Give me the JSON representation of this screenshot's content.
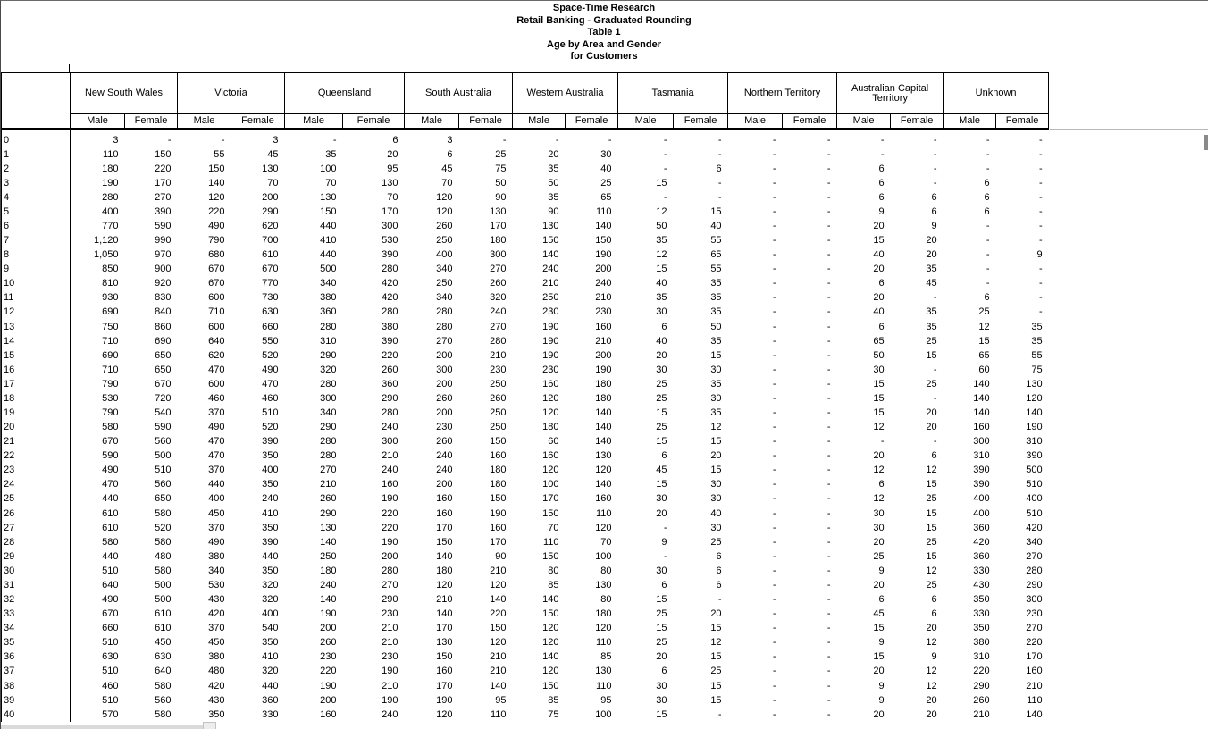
{
  "header": {
    "lines": [
      "Space-Time Research",
      "Retail Banking - Graduated Rounding",
      "Table 1",
      "Age by Area and Gender",
      "for Customers"
    ]
  },
  "table": {
    "groups": [
      "New South Wales",
      "Victoria",
      "Queensland",
      "South Australia",
      "Western Australia",
      "Tasmania",
      "Northern Territory",
      "Australian Capital Territory",
      "Unknown"
    ],
    "sub_headers": [
      "Male",
      "Female"
    ],
    "rows": [
      [
        "0",
        "3",
        "-",
        "-",
        "3",
        "-",
        "6",
        "3",
        "-",
        "-",
        "-",
        "-",
        "-",
        "-",
        "-",
        "-",
        "-",
        "-",
        "-"
      ],
      [
        "1",
        "110",
        "150",
        "55",
        "45",
        "35",
        "20",
        "6",
        "25",
        "20",
        "30",
        "-",
        "-",
        "-",
        "-",
        "-",
        "-",
        "-",
        "-"
      ],
      [
        "2",
        "180",
        "220",
        "150",
        "130",
        "100",
        "95",
        "45",
        "75",
        "35",
        "40",
        "-",
        "6",
        "-",
        "-",
        "6",
        "-",
        "-",
        "-"
      ],
      [
        "3",
        "190",
        "170",
        "140",
        "70",
        "70",
        "130",
        "70",
        "50",
        "50",
        "25",
        "15",
        "-",
        "-",
        "-",
        "6",
        "-",
        "6",
        "-"
      ],
      [
        "4",
        "280",
        "270",
        "120",
        "200",
        "130",
        "70",
        "120",
        "90",
        "35",
        "65",
        "-",
        "-",
        "-",
        "-",
        "6",
        "6",
        "6",
        "-"
      ],
      [
        "5",
        "400",
        "390",
        "220",
        "290",
        "150",
        "170",
        "120",
        "130",
        "90",
        "110",
        "12",
        "15",
        "-",
        "-",
        "9",
        "6",
        "6",
        "-"
      ],
      [
        "6",
        "770",
        "590",
        "490",
        "620",
        "440",
        "300",
        "260",
        "170",
        "130",
        "140",
        "50",
        "40",
        "-",
        "-",
        "20",
        "9",
        "-",
        "-"
      ],
      [
        "7",
        "1,120",
        "990",
        "790",
        "700",
        "410",
        "530",
        "250",
        "180",
        "150",
        "150",
        "35",
        "55",
        "-",
        "-",
        "15",
        "20",
        "-",
        "-"
      ],
      [
        "8",
        "1,050",
        "970",
        "680",
        "610",
        "440",
        "390",
        "400",
        "300",
        "140",
        "190",
        "12",
        "65",
        "-",
        "-",
        "40",
        "20",
        "-",
        "9"
      ],
      [
        "9",
        "850",
        "900",
        "670",
        "670",
        "500",
        "280",
        "340",
        "270",
        "240",
        "200",
        "15",
        "55",
        "-",
        "-",
        "20",
        "35",
        "-",
        "-"
      ],
      [
        "10",
        "810",
        "920",
        "670",
        "770",
        "340",
        "420",
        "250",
        "260",
        "210",
        "240",
        "40",
        "35",
        "-",
        "-",
        "6",
        "45",
        "-",
        "-"
      ],
      [
        "11",
        "930",
        "830",
        "600",
        "730",
        "380",
        "420",
        "340",
        "320",
        "250",
        "210",
        "35",
        "35",
        "-",
        "-",
        "20",
        "-",
        "6",
        "-"
      ],
      [
        "12",
        "690",
        "840",
        "710",
        "630",
        "360",
        "280",
        "280",
        "240",
        "230",
        "230",
        "30",
        "35",
        "-",
        "-",
        "40",
        "35",
        "25",
        "-"
      ],
      [
        "13",
        "750",
        "860",
        "600",
        "660",
        "280",
        "380",
        "280",
        "270",
        "190",
        "160",
        "6",
        "50",
        "-",
        "-",
        "6",
        "35",
        "12",
        "35"
      ],
      [
        "14",
        "710",
        "690",
        "640",
        "550",
        "310",
        "390",
        "270",
        "280",
        "190",
        "210",
        "40",
        "35",
        "-",
        "-",
        "65",
        "25",
        "15",
        "35"
      ],
      [
        "15",
        "690",
        "650",
        "620",
        "520",
        "290",
        "220",
        "200",
        "210",
        "190",
        "200",
        "20",
        "15",
        "-",
        "-",
        "50",
        "15",
        "65",
        "55"
      ],
      [
        "16",
        "710",
        "650",
        "470",
        "490",
        "320",
        "260",
        "300",
        "230",
        "230",
        "190",
        "30",
        "30",
        "-",
        "-",
        "30",
        "-",
        "60",
        "75"
      ],
      [
        "17",
        "790",
        "670",
        "600",
        "470",
        "280",
        "360",
        "200",
        "250",
        "160",
        "180",
        "25",
        "35",
        "-",
        "-",
        "15",
        "25",
        "140",
        "130"
      ],
      [
        "18",
        "530",
        "720",
        "460",
        "460",
        "300",
        "290",
        "260",
        "260",
        "120",
        "180",
        "25",
        "30",
        "-",
        "-",
        "15",
        "-",
        "140",
        "120"
      ],
      [
        "19",
        "790",
        "540",
        "370",
        "510",
        "340",
        "280",
        "200",
        "250",
        "120",
        "140",
        "15",
        "35",
        "-",
        "-",
        "15",
        "20",
        "140",
        "140"
      ],
      [
        "20",
        "580",
        "590",
        "490",
        "520",
        "290",
        "240",
        "230",
        "250",
        "180",
        "140",
        "25",
        "12",
        "-",
        "-",
        "12",
        "20",
        "160",
        "190"
      ],
      [
        "21",
        "670",
        "560",
        "470",
        "390",
        "280",
        "300",
        "260",
        "150",
        "60",
        "140",
        "15",
        "15",
        "-",
        "-",
        "-",
        "-",
        "300",
        "310"
      ],
      [
        "22",
        "590",
        "500",
        "470",
        "350",
        "280",
        "210",
        "240",
        "160",
        "160",
        "130",
        "6",
        "20",
        "-",
        "-",
        "20",
        "6",
        "310",
        "390"
      ],
      [
        "23",
        "490",
        "510",
        "370",
        "400",
        "270",
        "240",
        "240",
        "180",
        "120",
        "120",
        "45",
        "15",
        "-",
        "-",
        "12",
        "12",
        "390",
        "500"
      ],
      [
        "24",
        "470",
        "560",
        "440",
        "350",
        "210",
        "160",
        "200",
        "180",
        "100",
        "140",
        "15",
        "30",
        "-",
        "-",
        "6",
        "15",
        "390",
        "510"
      ],
      [
        "25",
        "440",
        "650",
        "400",
        "240",
        "260",
        "190",
        "160",
        "150",
        "170",
        "160",
        "30",
        "30",
        "-",
        "-",
        "12",
        "25",
        "400",
        "400"
      ],
      [
        "26",
        "610",
        "580",
        "450",
        "410",
        "290",
        "220",
        "160",
        "190",
        "150",
        "110",
        "20",
        "40",
        "-",
        "-",
        "30",
        "15",
        "400",
        "510"
      ],
      [
        "27",
        "610",
        "520",
        "370",
        "350",
        "130",
        "220",
        "170",
        "160",
        "70",
        "120",
        "-",
        "30",
        "-",
        "-",
        "30",
        "15",
        "360",
        "420"
      ],
      [
        "28",
        "580",
        "580",
        "490",
        "390",
        "140",
        "190",
        "150",
        "170",
        "110",
        "70",
        "9",
        "25",
        "-",
        "-",
        "20",
        "25",
        "420",
        "340"
      ],
      [
        "29",
        "440",
        "480",
        "380",
        "440",
        "250",
        "200",
        "140",
        "90",
        "150",
        "100",
        "-",
        "6",
        "-",
        "-",
        "25",
        "15",
        "360",
        "270"
      ],
      [
        "30",
        "510",
        "580",
        "340",
        "350",
        "180",
        "280",
        "180",
        "210",
        "80",
        "80",
        "30",
        "6",
        "-",
        "-",
        "9",
        "12",
        "330",
        "280"
      ],
      [
        "31",
        "640",
        "500",
        "530",
        "320",
        "240",
        "270",
        "120",
        "120",
        "85",
        "130",
        "6",
        "6",
        "-",
        "-",
        "20",
        "25",
        "430",
        "290"
      ],
      [
        "32",
        "490",
        "500",
        "430",
        "320",
        "140",
        "290",
        "210",
        "140",
        "140",
        "80",
        "15",
        "-",
        "-",
        "-",
        "6",
        "6",
        "350",
        "300"
      ],
      [
        "33",
        "670",
        "610",
        "420",
        "400",
        "190",
        "230",
        "140",
        "220",
        "150",
        "180",
        "25",
        "20",
        "-",
        "-",
        "45",
        "6",
        "330",
        "230"
      ],
      [
        "34",
        "660",
        "610",
        "370",
        "540",
        "200",
        "210",
        "170",
        "150",
        "120",
        "120",
        "15",
        "15",
        "-",
        "-",
        "15",
        "20",
        "350",
        "270"
      ],
      [
        "35",
        "510",
        "450",
        "450",
        "350",
        "260",
        "210",
        "130",
        "120",
        "120",
        "110",
        "25",
        "12",
        "-",
        "-",
        "9",
        "12",
        "380",
        "220"
      ],
      [
        "36",
        "630",
        "630",
        "380",
        "410",
        "230",
        "230",
        "150",
        "210",
        "140",
        "85",
        "20",
        "15",
        "-",
        "-",
        "15",
        "9",
        "310",
        "170"
      ],
      [
        "37",
        "510",
        "640",
        "480",
        "320",
        "220",
        "190",
        "160",
        "210",
        "120",
        "130",
        "6",
        "25",
        "-",
        "-",
        "20",
        "12",
        "220",
        "160"
      ],
      [
        "38",
        "460",
        "580",
        "420",
        "440",
        "190",
        "210",
        "170",
        "140",
        "150",
        "110",
        "30",
        "15",
        "-",
        "-",
        "9",
        "12",
        "290",
        "210"
      ],
      [
        "39",
        "510",
        "560",
        "430",
        "360",
        "200",
        "190",
        "190",
        "95",
        "85",
        "95",
        "30",
        "15",
        "-",
        "-",
        "9",
        "20",
        "260",
        "110"
      ],
      [
        "40",
        "570",
        "580",
        "350",
        "330",
        "160",
        "240",
        "120",
        "110",
        "75",
        "100",
        "15",
        "-",
        "-",
        "-",
        "20",
        "20",
        "210",
        "140"
      ]
    ]
  },
  "colors": {
    "grid_line": "#000000",
    "window_border_top": "#6a6a6a",
    "faint_line": "#b9b9b9",
    "scrollbar_track": "#dadada",
    "scrollbar_thumb": "#8a8a8a"
  }
}
